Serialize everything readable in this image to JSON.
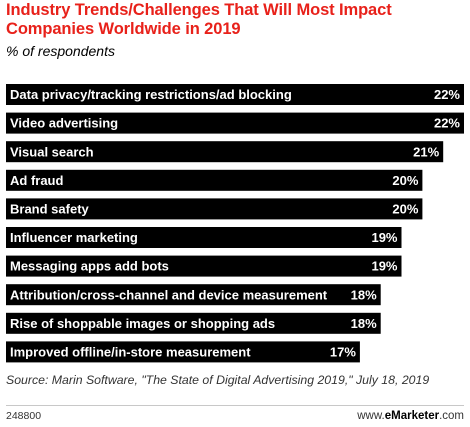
{
  "header": {
    "title_line1": "Industry Trends/Challenges That Will Most Impact",
    "title_line2": "Companies Worldwide in 2019",
    "subtitle": "% of respondents",
    "title_color": "#e8211a"
  },
  "chart_data": {
    "type": "bar",
    "orientation": "horizontal",
    "title": "Industry Trends/Challenges That Will Most Impact Companies Worldwide in 2019",
    "subtitle": "% of respondents",
    "categories": [
      "Data privacy/tracking restrictions/ad blocking",
      "Video advertising",
      "Visual search",
      "Ad fraud",
      "Brand safety",
      "Influencer marketing",
      "Messaging apps add bots",
      "Attribution/cross-channel and device measurement",
      "Rise of shoppable images or shopping ads",
      "Improved offline/in-store measurement"
    ],
    "values": [
      22,
      22,
      21,
      20,
      20,
      19,
      19,
      18,
      18,
      17
    ],
    "value_labels": [
      "22%",
      "22%",
      "21%",
      "20%",
      "20%",
      "19%",
      "19%",
      "18%",
      "18%",
      "17%"
    ],
    "unit": "%",
    "xlim": [
      0,
      22
    ],
    "bar_color": "#000000",
    "label_color": "#ffffff",
    "grid": false,
    "legend": false
  },
  "footer": {
    "source": "Source: Marin Software, \"The State of Digital Advertising 2019,\" July 18, 2019",
    "chart_id": "248800",
    "brand_prefix": "www.",
    "brand_name": "eMarketer",
    "brand_suffix": ".com"
  }
}
